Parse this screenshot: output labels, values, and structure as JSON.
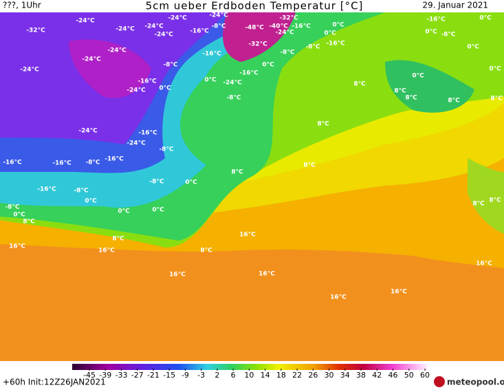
{
  "header": {
    "run": "???, 1Uhr",
    "title": "5cm ueber Erdboden Temperatur [°C]",
    "date": "29. Januar 2021"
  },
  "footer": {
    "init": "+60h Init:12Z26JAN2021",
    "logo": "meteopool.org"
  },
  "colorbar_ticks": [
    -45,
    -39,
    -33,
    -27,
    -21,
    -15,
    -9,
    -3,
    2,
    6,
    10,
    14,
    18,
    22,
    26,
    30,
    34,
    38,
    42,
    46,
    50,
    60
  ],
  "map_labels": [
    "-32°C",
    "-24°C",
    "-24°C",
    "-24°C",
    "-24°C",
    "-24°C",
    "-24°C",
    "-16°C",
    "-8°C",
    "-48°C",
    "-40°C",
    "-32°C",
    "-16°C",
    "-24°C",
    "0°C",
    "0°C",
    "-8°C",
    "-16°C",
    "-32°C",
    "-8°C",
    "-24°C",
    "-24°C",
    "-24°C",
    "-8°C",
    "-16°C",
    "0°C",
    "-16°C",
    "0°C",
    "-24°C",
    "-16°C",
    "-24°C",
    "0°C",
    "-8°C",
    "8°C",
    "0°C",
    "8°C",
    "8°C",
    "8°C",
    "8°C",
    "-16°C",
    "0°C",
    "-8°C",
    "0°C",
    "0°C",
    "0°C",
    "8°C",
    "-24°C",
    "-16°C",
    "-24°C",
    "-8°C",
    "8°C",
    "8°C",
    "-16°C",
    "-16°C",
    "-8°C",
    "-16°C",
    "-8°C",
    "0°C",
    "-16°C",
    "-8°C",
    "0°C",
    "-8°C",
    "0°C",
    "8°C",
    "0°C",
    "0°C",
    "8°C",
    "16°C",
    "16°C",
    "16°C",
    "8°C",
    "8°C",
    "8°C",
    "16°C",
    "16°C",
    "16°C",
    "16°C",
    "16°C"
  ]
}
